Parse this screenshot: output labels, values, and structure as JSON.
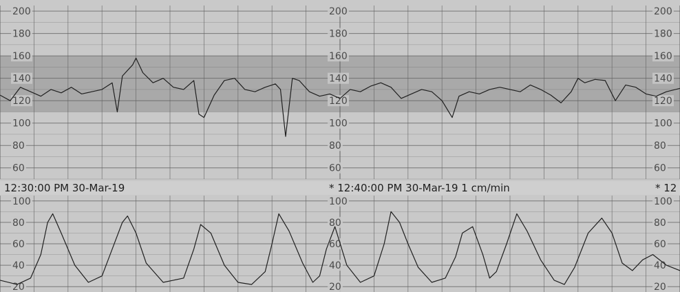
{
  "chart_data": [
    {
      "type": "line",
      "title": "",
      "xlabel": "",
      "ylabel": "",
      "xlim": [
        0,
        20
      ],
      "ylim": [
        50,
        205
      ],
      "y_ticks": [
        "60",
        "80",
        "100",
        "120",
        "140",
        "160",
        "180",
        "200"
      ],
      "normal_band": [
        110,
        160
      ],
      "series": [
        {
          "x": [
            0,
            0.3,
            0.6,
            0.9,
            1.2,
            1.5,
            1.8,
            2.1,
            2.4,
            2.7,
            3.0,
            3.3,
            3.45,
            3.6,
            3.9,
            4.0,
            4.2,
            4.5,
            4.8,
            5.1,
            5.4,
            5.7,
            5.85,
            6.0,
            6.3,
            6.6,
            6.9,
            7.2,
            7.5,
            7.8,
            8.1,
            8.25,
            8.4,
            8.6,
            8.8,
            9.1,
            9.4,
            9.7,
            10.0,
            10.3,
            10.6,
            10.9,
            11.2,
            11.5,
            11.8,
            12.1,
            12.4,
            12.7,
            13.0,
            13.3,
            13.5,
            13.8,
            14.1,
            14.4,
            14.7,
            15.0,
            15.3,
            15.6,
            15.9,
            16.2,
            16.5,
            16.8,
            17.0,
            17.2,
            17.5,
            17.8,
            18.1,
            18.4,
            18.7,
            19.0,
            19.3,
            19.6,
            20.0
          ],
          "y": [
            125,
            120,
            132,
            128,
            124,
            130,
            127,
            132,
            126,
            128,
            130,
            136,
            110,
            142,
            152,
            158,
            145,
            136,
            140,
            132,
            130,
            138,
            108,
            105,
            125,
            138,
            140,
            130,
            128,
            132,
            135,
            130,
            88,
            140,
            138,
            128,
            124,
            126,
            122,
            130,
            128,
            133,
            136,
            132,
            122,
            126,
            130,
            128,
            120,
            105,
            124,
            128,
            126,
            130,
            132,
            130,
            128,
            134,
            130,
            125,
            118,
            128,
            140,
            136,
            139,
            138,
            120,
            134,
            132,
            126,
            124,
            128,
            131
          ]
        }
      ]
    },
    {
      "type": "line",
      "title": "",
      "xlabel": "",
      "ylabel": "",
      "xlim": [
        0,
        20
      ],
      "ylim": [
        15,
        105
      ],
      "y_ticks": [
        "20",
        "40",
        "60",
        "80",
        "100"
      ],
      "series": [
        {
          "x": [
            0,
            0.5,
            0.9,
            1.2,
            1.4,
            1.55,
            1.8,
            2.2,
            2.6,
            3.0,
            3.3,
            3.6,
            3.75,
            4.0,
            4.3,
            4.8,
            5.1,
            5.4,
            5.7,
            5.9,
            6.2,
            6.6,
            7.0,
            7.4,
            7.8,
            8.0,
            8.2,
            8.5,
            8.9,
            9.2,
            9.4,
            9.6,
            9.85,
            10.2,
            10.6,
            11.0,
            11.3,
            11.5,
            11.75,
            12.0,
            12.3,
            12.7,
            13.1,
            13.4,
            13.6,
            13.9,
            14.2,
            14.4,
            14.6,
            14.9,
            15.2,
            15.5,
            15.9,
            16.3,
            16.6,
            16.9,
            17.3,
            17.7,
            18.0,
            18.3,
            18.6,
            18.9,
            19.2,
            19.6,
            20.0
          ],
          "y": [
            26,
            22,
            28,
            50,
            80,
            88,
            70,
            40,
            24,
            30,
            55,
            80,
            86,
            70,
            42,
            24,
            26,
            28,
            55,
            78,
            70,
            40,
            24,
            22,
            34,
            60,
            88,
            72,
            42,
            24,
            30,
            55,
            76,
            40,
            24,
            30,
            60,
            90,
            80,
            60,
            38,
            24,
            28,
            48,
            70,
            76,
            50,
            28,
            34,
            60,
            88,
            72,
            45,
            26,
            22,
            38,
            70,
            84,
            70,
            42,
            35,
            45,
            50,
            40,
            35
          ]
        }
      ]
    }
  ],
  "strip": {
    "left_time": "12:30:00 PM 30-Mar-19",
    "center_time": "* 12:40:00 PM 30-Mar-19  1 cm/min",
    "right_time": "* 12"
  },
  "colors": {
    "paper": "#c9c9c9",
    "band": "#a9a9a9",
    "grid": "#5e5e5e",
    "trace": "#1f1f1f"
  }
}
